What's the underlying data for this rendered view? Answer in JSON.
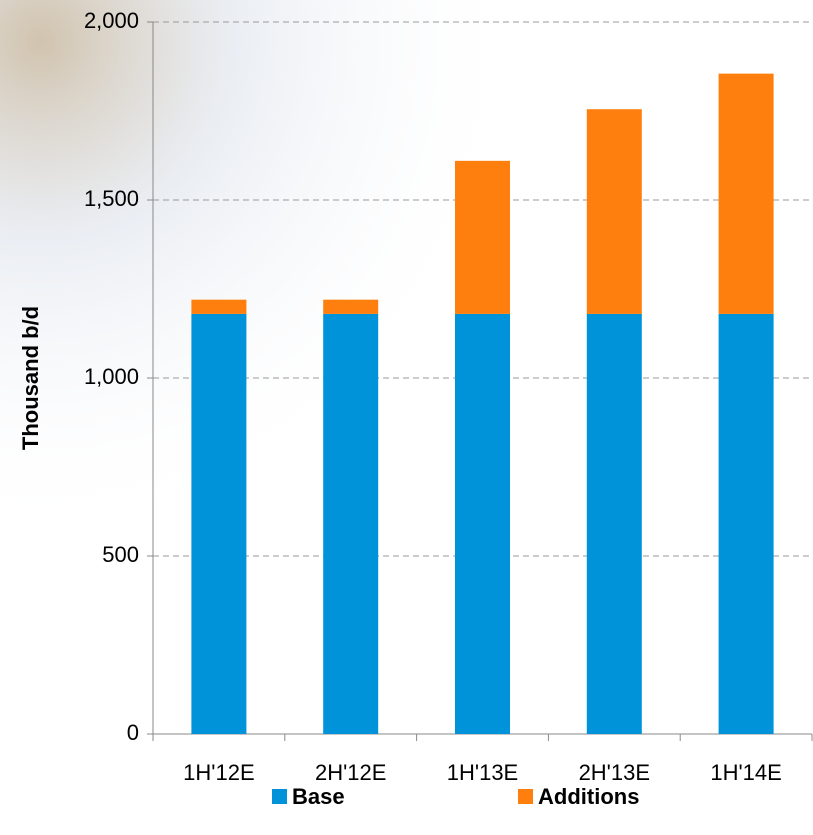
{
  "chart_data": {
    "type": "stacked_bar",
    "y_label": "Thousand b/d",
    "categories": [
      "1H'12E",
      "2H'12E",
      "1H'13E",
      "2H'13E",
      "1H'14E"
    ],
    "series": [
      {
        "name": "Base",
        "color": "#0093d9",
        "values": [
          1180,
          1180,
          1180,
          1180,
          1180
        ]
      },
      {
        "name": "Additions",
        "color": "#ff7f0e",
        "values": [
          40,
          40,
          430,
          575,
          675
        ]
      }
    ],
    "ylim": [
      0,
      2000
    ],
    "yticks": [
      0,
      500,
      {
        "value": 1000,
        "label": "1,000"
      },
      {
        "value": 1500,
        "label": "1,500"
      },
      {
        "value": 2000,
        "label": "2,000"
      }
    ],
    "grid": true
  }
}
